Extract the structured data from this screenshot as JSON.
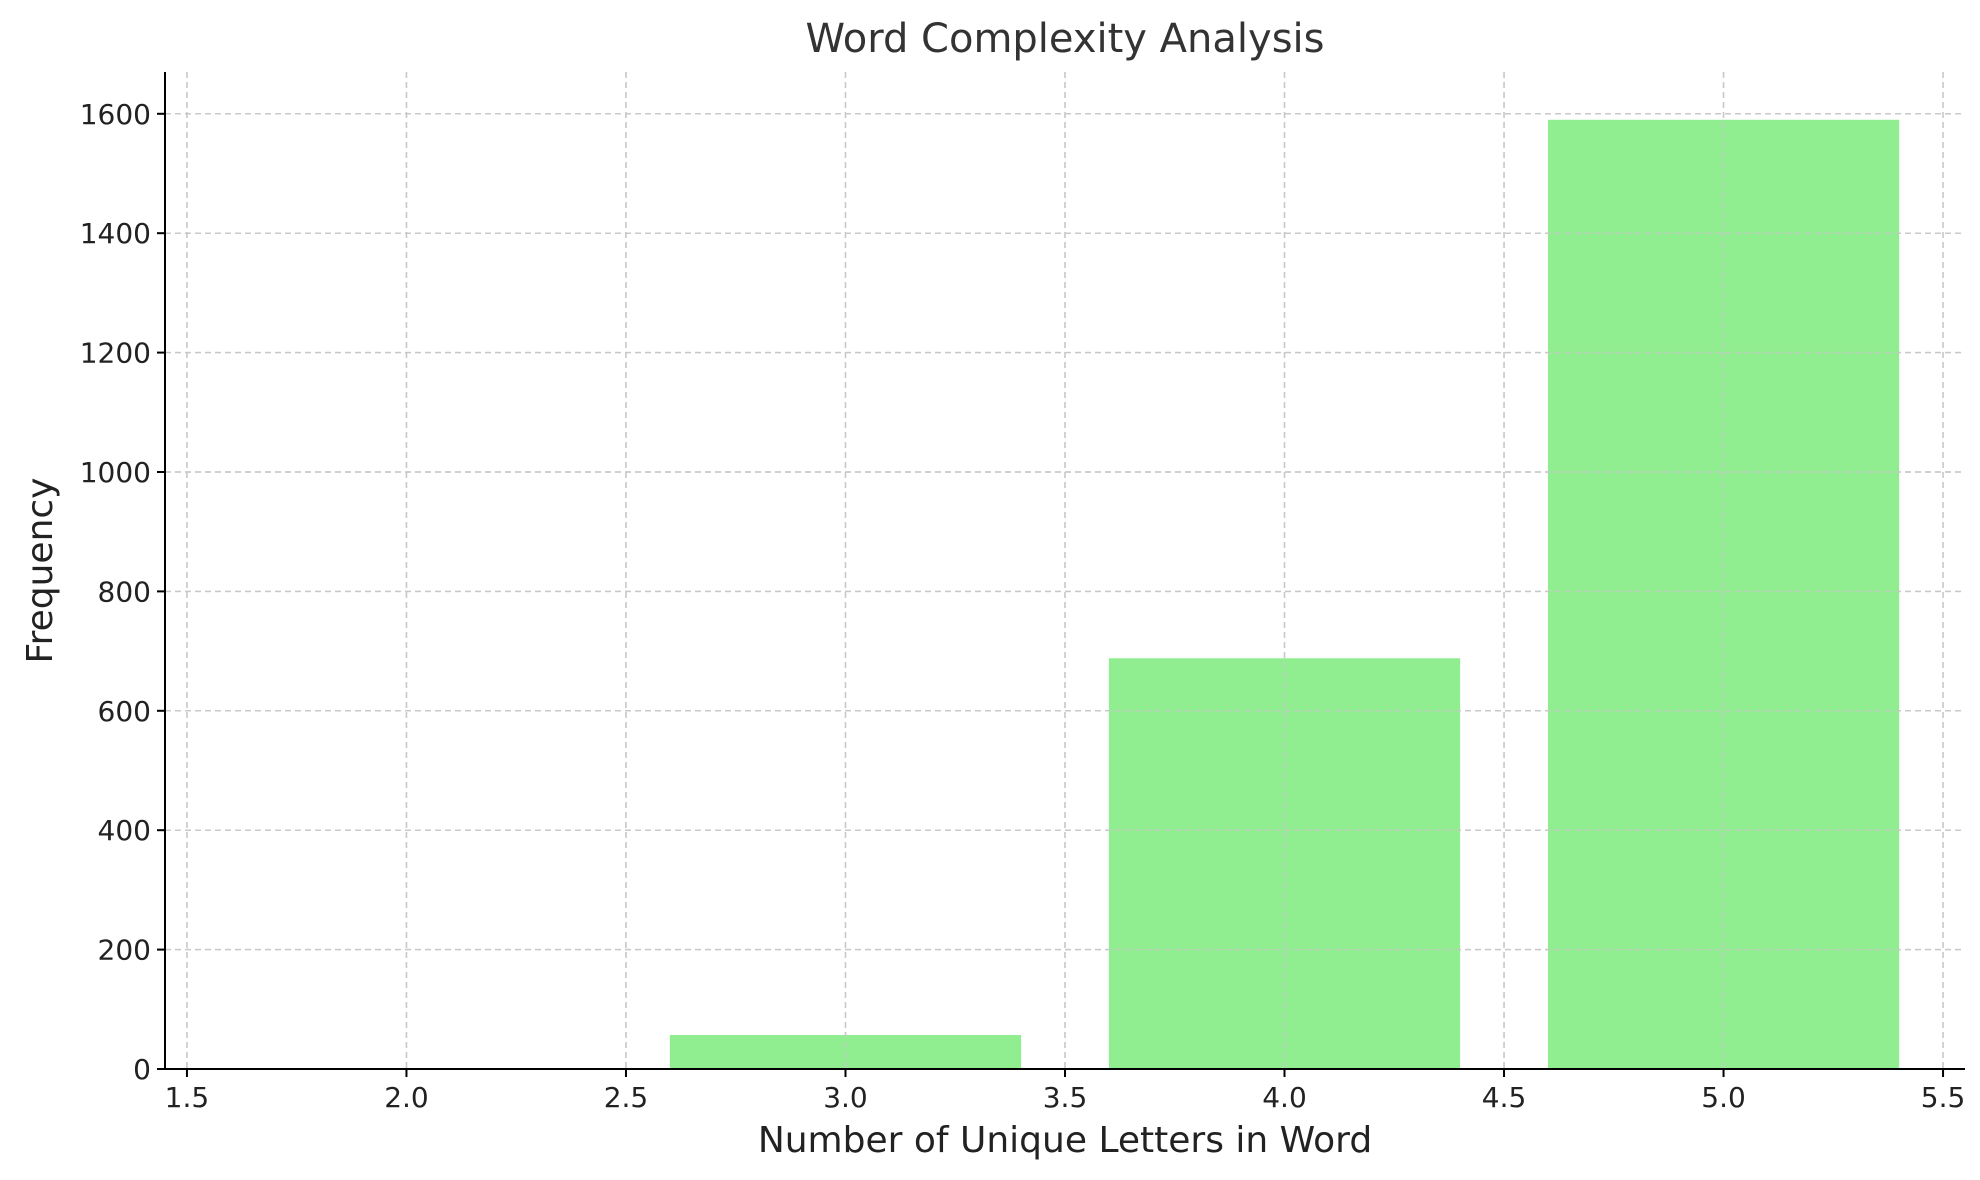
{
  "chart_data": {
    "type": "bar",
    "title": "Word Complexity Analysis",
    "xlabel": "Number of Unique Letters in Word",
    "ylabel": "Frequency",
    "x": [
      3,
      4,
      5
    ],
    "values": [
      57,
      688,
      1590
    ],
    "bar_width": 0.8,
    "xlim": [
      1.45,
      5.55
    ],
    "ylim": [
      0,
      1670
    ],
    "xticks": [
      1.5,
      2.0,
      2.5,
      3.0,
      3.5,
      4.0,
      4.5,
      5.0,
      5.5
    ],
    "xtick_labels": [
      "1.5",
      "2.0",
      "2.5",
      "3.0",
      "3.5",
      "4.0",
      "4.5",
      "5.0",
      "5.5"
    ],
    "yticks": [
      0,
      200,
      400,
      600,
      800,
      1000,
      1200,
      1400,
      1600
    ],
    "ytick_labels": [
      "0",
      "200",
      "400",
      "600",
      "800",
      "1000",
      "1200",
      "1400",
      "1600"
    ],
    "grid": true,
    "bar_color": "#90ee90"
  }
}
